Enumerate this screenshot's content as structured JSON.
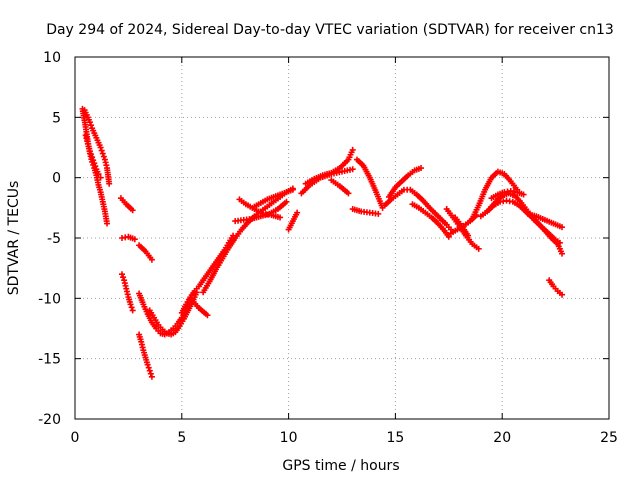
{
  "chart_data": {
    "type": "scatter",
    "title": "Day 294 of 2024, Sidereal Day-to-day VTEC variation (SDTVAR) for receiver cn13",
    "xlabel": "GPS time / hours",
    "ylabel": "SDTVAR / TECUs",
    "xlim": [
      0,
      25
    ],
    "ylim": [
      -20,
      10
    ],
    "xticks": [
      0,
      5,
      10,
      15,
      20,
      25
    ],
    "yticks": [
      -20,
      -15,
      -10,
      -5,
      0,
      5,
      10
    ],
    "grid": true,
    "marker": "+",
    "color": "#ff0000",
    "series": [
      {
        "name": "t1",
        "x": [
          0.35,
          0.5,
          0.6,
          0.7,
          0.8,
          0.9,
          1.0,
          1.1,
          1.2,
          1.3,
          1.4,
          1.5
        ],
        "y": [
          5.7,
          4.2,
          3.0,
          2.0,
          1.3,
          0.8,
          0.2,
          -0.6,
          -1.2,
          -2.0,
          -2.8,
          -3.8
        ]
      },
      {
        "name": "t2",
        "x": [
          0.45,
          0.6,
          0.7,
          0.8,
          0.9,
          1.0,
          1.1,
          1.2,
          1.3,
          1.4,
          1.5,
          1.6
        ],
        "y": [
          5.6,
          5.0,
          4.6,
          4.1,
          3.7,
          3.3,
          2.9,
          2.5,
          2.0,
          1.5,
          0.8,
          -0.5
        ]
      },
      {
        "name": "t3",
        "x": [
          0.5,
          0.6,
          0.7,
          0.8,
          0.9,
          1.0,
          1.1,
          1.2
        ],
        "y": [
          3.5,
          2.8,
          2.2,
          1.7,
          1.2,
          0.7,
          0.3,
          0.0
        ]
      },
      {
        "name": "t4",
        "x": [
          2.15,
          2.4,
          2.7
        ],
        "y": [
          -1.7,
          -2.2,
          -2.7
        ]
      },
      {
        "name": "t5",
        "x": [
          2.2,
          2.5,
          2.8
        ],
        "y": [
          -5.0,
          -4.9,
          -5.1
        ]
      },
      {
        "name": "t6",
        "x": [
          3.0,
          3.3,
          3.6
        ],
        "y": [
          -5.6,
          -6.1,
          -6.8
        ]
      },
      {
        "name": "t7",
        "x": [
          2.2,
          2.3,
          2.4,
          2.5,
          2.6,
          2.7
        ],
        "y": [
          -8.0,
          -8.5,
          -9.2,
          -9.9,
          -10.5,
          -11.0
        ]
      },
      {
        "name": "t8",
        "x": [
          3.0,
          3.1,
          3.2,
          3.3,
          3.4,
          3.5,
          3.6
        ],
        "y": [
          -13.0,
          -13.6,
          -14.3,
          -14.9,
          -15.5,
          -16.0,
          -16.5
        ]
      },
      {
        "name": "t9",
        "x": [
          3.0,
          3.2,
          3.4,
          3.6,
          3.8,
          4.0,
          4.2,
          4.4,
          4.6,
          4.8,
          5.0,
          5.2,
          5.4
        ],
        "y": [
          -9.6,
          -10.5,
          -11.3,
          -12.0,
          -12.5,
          -12.9,
          -13.0,
          -12.8,
          -12.5,
          -12.1,
          -11.6,
          -11.0,
          -10.4
        ]
      },
      {
        "name": "t10",
        "x": [
          3.5,
          3.7,
          3.9,
          4.1,
          4.3,
          4.5,
          4.7,
          4.9,
          5.1,
          5.3,
          5.5,
          5.7
        ],
        "y": [
          -11.0,
          -11.6,
          -12.2,
          -12.6,
          -12.9,
          -13.0,
          -12.8,
          -12.3,
          -11.7,
          -11.0,
          -10.3,
          -9.5
        ]
      },
      {
        "name": "t11",
        "x": [
          5.0,
          5.2,
          5.4,
          5.6,
          5.8,
          6.0,
          6.2,
          6.4,
          6.6,
          6.8,
          7.0,
          7.2,
          7.4
        ],
        "y": [
          -11.2,
          -10.5,
          -9.9,
          -9.4,
          -9.0,
          -8.5,
          -8.0,
          -7.5,
          -7.0,
          -6.5,
          -6.0,
          -5.4,
          -4.8
        ]
      },
      {
        "name": "t12",
        "x": [
          5.4,
          5.8,
          6.2
        ],
        "y": [
          -10.0,
          -10.8,
          -11.4
        ]
      },
      {
        "name": "t13",
        "x": [
          6.0,
          6.3,
          6.6,
          6.9,
          7.2,
          7.5,
          7.8,
          8.1,
          8.4,
          8.7,
          9.0,
          9.3,
          9.6,
          9.9,
          10.2
        ],
        "y": [
          -9.5,
          -8.6,
          -7.6,
          -6.7,
          -5.8,
          -5.0,
          -4.3,
          -3.7,
          -3.2,
          -2.8,
          -2.4,
          -2.0,
          -1.6,
          -1.2,
          -0.9
        ]
      },
      {
        "name": "t14",
        "x": [
          7.5,
          7.9,
          8.3,
          8.7,
          9.1,
          9.5,
          9.9
        ],
        "y": [
          -3.6,
          -3.5,
          -3.4,
          -3.2,
          -3.0,
          -2.6,
          -2.0
        ]
      },
      {
        "name": "t15",
        "x": [
          7.7,
          8.0,
          8.4,
          8.8,
          9.2,
          9.6
        ],
        "y": [
          -1.8,
          -2.2,
          -2.6,
          -3.0,
          -3.1,
          -3.3
        ]
      },
      {
        "name": "t16",
        "x": [
          8.4,
          8.7,
          9.0,
          9.3,
          9.6,
          9.9,
          10.2
        ],
        "y": [
          -2.4,
          -2.1,
          -1.8,
          -1.6,
          -1.4,
          -1.2,
          -1.0
        ]
      },
      {
        "name": "t17",
        "x": [
          10.0,
          10.2,
          10.4
        ],
        "y": [
          -4.3,
          -3.6,
          -2.9
        ]
      },
      {
        "name": "t18",
        "x": [
          10.6,
          11.0,
          11.5,
          12.0,
          12.5,
          13.0
        ],
        "y": [
          -1.3,
          -0.6,
          0.0,
          0.3,
          0.5,
          0.7
        ]
      },
      {
        "name": "t19",
        "x": [
          10.8,
          11.2,
          11.6,
          12.0,
          12.4,
          12.8,
          13.0
        ],
        "y": [
          -0.5,
          -0.1,
          0.2,
          0.4,
          0.8,
          1.5,
          2.3
        ]
      },
      {
        "name": "t20",
        "x": [
          12.0,
          12.4,
          12.8
        ],
        "y": [
          -0.2,
          -0.7,
          -1.3
        ]
      },
      {
        "name": "t21",
        "x": [
          13.2,
          13.5,
          13.8,
          14.1,
          14.4
        ],
        "y": [
          1.5,
          1.0,
          0.0,
          -1.2,
          -2.5
        ]
      },
      {
        "name": "t22",
        "x": [
          13.0,
          13.4,
          13.8,
          14.2
        ],
        "y": [
          -2.6,
          -2.8,
          -2.9,
          -3.0
        ]
      },
      {
        "name": "t23",
        "x": [
          14.5,
          14.8,
          15.1,
          15.4,
          15.7,
          16.0,
          16.3,
          16.6,
          17.0,
          17.4,
          17.6
        ],
        "y": [
          -2.3,
          -1.8,
          -1.4,
          -1.0,
          -1.0,
          -1.4,
          -1.9,
          -2.5,
          -3.2,
          -3.9,
          -4.3
        ]
      },
      {
        "name": "t24",
        "x": [
          14.7,
          15.0,
          15.3,
          15.6,
          15.9,
          16.2
        ],
        "y": [
          -1.6,
          -0.8,
          -0.3,
          0.2,
          0.6,
          0.8
        ]
      },
      {
        "name": "t25",
        "x": [
          15.8,
          16.1,
          16.4,
          16.7,
          17.0,
          17.3,
          17.5
        ],
        "y": [
          -2.2,
          -2.5,
          -2.9,
          -3.3,
          -3.8,
          -4.4,
          -4.9
        ]
      },
      {
        "name": "t26",
        "x": [
          17.4,
          17.7,
          18.0,
          18.3,
          18.6,
          18.9
        ],
        "y": [
          -2.6,
          -3.3,
          -4.0,
          -4.8,
          -5.5,
          -5.9
        ]
      },
      {
        "name": "t27",
        "x": [
          17.6,
          17.9,
          18.2,
          18.5,
          18.8
        ],
        "y": [
          -4.6,
          -4.3,
          -4.0,
          -3.6,
          -3.1
        ]
      },
      {
        "name": "t28",
        "x": [
          17.8,
          18.1,
          18.4
        ],
        "y": [
          -3.3,
          -4.0,
          -4.8
        ]
      },
      {
        "name": "t29",
        "x": [
          18.6,
          18.9,
          19.2,
          19.5,
          19.8,
          20.1,
          20.4,
          20.7
        ],
        "y": [
          -3.4,
          -2.3,
          -1.0,
          0.0,
          0.5,
          0.3,
          -0.3,
          -1.0
        ]
      },
      {
        "name": "t30",
        "x": [
          19.0,
          19.3,
          19.6,
          19.9,
          20.2,
          20.5,
          20.8,
          21.1,
          21.4,
          21.7,
          22.0,
          22.3,
          22.6,
          22.8
        ],
        "y": [
          -3.2,
          -2.8,
          -2.3,
          -2.0,
          -1.9,
          -2.0,
          -2.3,
          -2.8,
          -3.3,
          -3.8,
          -4.4,
          -5.0,
          -5.5,
          -6.3
        ]
      },
      {
        "name": "t31",
        "x": [
          19.4,
          19.7,
          20.0,
          20.3,
          20.6,
          20.9,
          21.2,
          21.5,
          21.8,
          22.1,
          22.4,
          22.7
        ],
        "y": [
          -2.6,
          -2.0,
          -1.5,
          -1.3,
          -1.5,
          -2.1,
          -2.8,
          -3.5,
          -4.0,
          -4.5,
          -5.0,
          -5.4
        ]
      },
      {
        "name": "t32",
        "x": [
          19.5,
          19.8,
          20.1,
          20.4,
          20.7,
          21.0
        ],
        "y": [
          -1.7,
          -1.4,
          -1.2,
          -1.1,
          -1.2,
          -1.4
        ]
      },
      {
        "name": "t33",
        "x": [
          21.2,
          21.6,
          22.0,
          22.4,
          22.8
        ],
        "y": [
          -3.0,
          -3.2,
          -3.5,
          -3.8,
          -4.1
        ]
      },
      {
        "name": "t34",
        "x": [
          22.2,
          22.4,
          22.6,
          22.8
        ],
        "y": [
          -8.5,
          -9.0,
          -9.4,
          -9.7
        ]
      }
    ]
  }
}
